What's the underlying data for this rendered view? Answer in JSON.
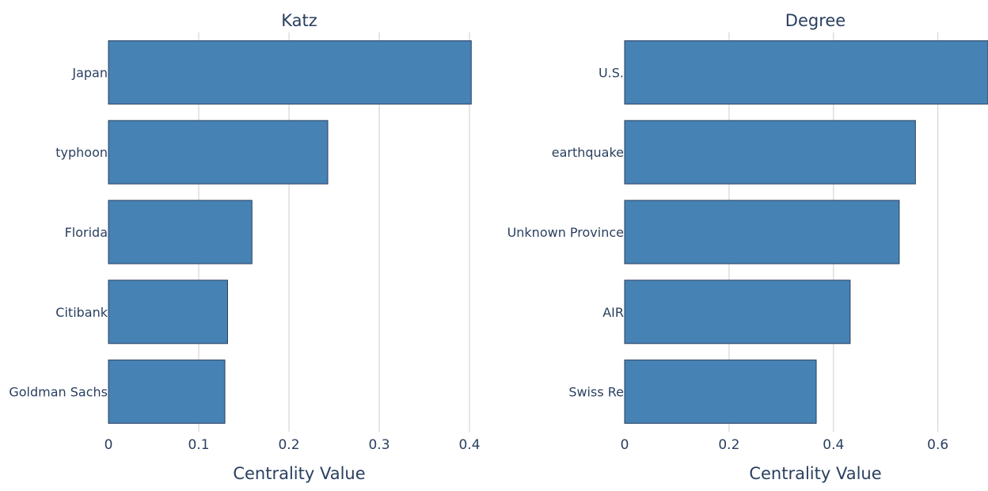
{
  "chart_data": [
    {
      "type": "bar",
      "orientation": "horizontal",
      "title": "Katz",
      "xlabel": "Centrality Value",
      "categories": [
        "Japan",
        "typhoon",
        "Florida",
        "Citibank",
        "Goldman Sachs"
      ],
      "values": [
        0.402,
        0.243,
        0.159,
        0.132,
        0.129
      ],
      "xlim": [
        0,
        0.415
      ],
      "xticks": [
        0,
        0.1,
        0.2,
        0.3,
        0.4
      ],
      "xtick_labels": [
        "0",
        "0.1",
        "0.2",
        "0.3",
        "0.4"
      ],
      "color": "#4682b4",
      "grid": true
    },
    {
      "type": "bar",
      "orientation": "horizontal",
      "title": "Degree",
      "xlabel": "Centrality Value",
      "categories": [
        "U.S.",
        "earthquake",
        "Unknown Province",
        "AIR",
        "Swiss Re"
      ],
      "values": [
        0.696,
        0.557,
        0.526,
        0.432,
        0.367
      ],
      "xlim": [
        0,
        0.696
      ],
      "xticks": [
        0,
        0.2,
        0.4,
        0.6
      ],
      "xtick_labels": [
        "0",
        "0.2",
        "0.4",
        "0.6"
      ],
      "color": "#4682b4",
      "grid": true
    }
  ]
}
